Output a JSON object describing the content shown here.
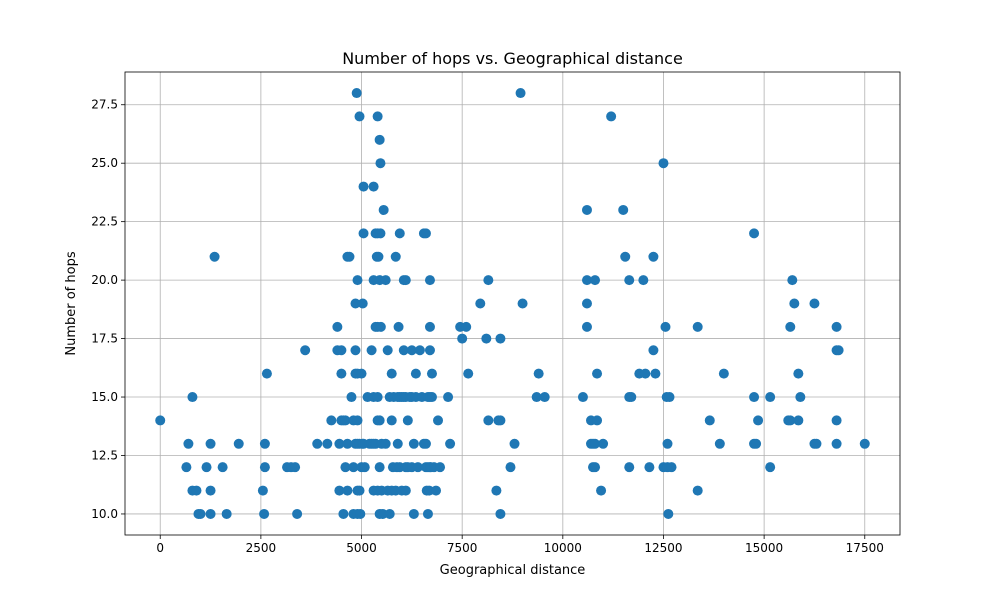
{
  "chart_data": {
    "type": "scatter",
    "title": "Number of hops vs. Geographical distance",
    "xlabel": "Geographical distance",
    "ylabel": "Number of hops",
    "xlim": [
      -875,
      18375
    ],
    "ylim": [
      9.1,
      28.9
    ],
    "xticks": [
      0,
      2500,
      5000,
      7500,
      10000,
      12500,
      15000,
      17500
    ],
    "xtick_labels": [
      "0",
      "2500",
      "5000",
      "7500",
      "10000",
      "12500",
      "15000",
      "17500"
    ],
    "yticks": [
      10.0,
      12.5,
      15.0,
      17.5,
      20.0,
      22.5,
      25.0,
      27.5
    ],
    "ytick_labels": [
      "10.0",
      "12.5",
      "15.0",
      "17.5",
      "20.0",
      "22.5",
      "25.0",
      "27.5"
    ],
    "grid": true,
    "marker_color": "#1f77b4",
    "series": [
      {
        "points": [
          [
            0,
            14
          ],
          [
            650,
            12
          ],
          [
            700,
            13
          ],
          [
            800,
            15
          ],
          [
            800,
            11
          ],
          [
            900,
            11
          ],
          [
            950,
            10
          ],
          [
            1000,
            10
          ],
          [
            1150,
            12
          ],
          [
            1250,
            13
          ],
          [
            1250,
            11
          ],
          [
            1250,
            10
          ],
          [
            1350,
            21
          ],
          [
            1550,
            12
          ],
          [
            1650,
            10
          ],
          [
            1950,
            13
          ],
          [
            2550,
            11
          ],
          [
            2580,
            10
          ],
          [
            2600,
            13
          ],
          [
            2600,
            12
          ],
          [
            2650,
            16
          ],
          [
            3150,
            12
          ],
          [
            3250,
            12
          ],
          [
            3350,
            12
          ],
          [
            3400,
            10
          ],
          [
            3600,
            17
          ],
          [
            3900,
            13
          ],
          [
            4150,
            13
          ],
          [
            4250,
            14
          ],
          [
            4400,
            18
          ],
          [
            4400,
            17
          ],
          [
            4450,
            13
          ],
          [
            4450,
            11
          ],
          [
            4500,
            17
          ],
          [
            4500,
            16
          ],
          [
            4500,
            14
          ],
          [
            4550,
            14
          ],
          [
            4550,
            10
          ],
          [
            4600,
            14
          ],
          [
            4600,
            12
          ],
          [
            4650,
            21
          ],
          [
            4650,
            13
          ],
          [
            4650,
            11
          ],
          [
            4700,
            21
          ],
          [
            4750,
            15
          ],
          [
            4800,
            14
          ],
          [
            4800,
            12
          ],
          [
            4800,
            10
          ],
          [
            4850,
            19
          ],
          [
            4850,
            17
          ],
          [
            4850,
            16
          ],
          [
            4850,
            13
          ],
          [
            4880,
            28
          ],
          [
            4900,
            20
          ],
          [
            4900,
            16
          ],
          [
            4900,
            14
          ],
          [
            4900,
            13
          ],
          [
            4900,
            11
          ],
          [
            4900,
            10
          ],
          [
            4950,
            27
          ],
          [
            4950,
            13
          ],
          [
            4950,
            11
          ],
          [
            4970,
            10
          ],
          [
            5000,
            16
          ],
          [
            5000,
            12
          ],
          [
            5020,
            13
          ],
          [
            5030,
            19
          ],
          [
            5050,
            24
          ],
          [
            5050,
            22
          ],
          [
            5050,
            13
          ],
          [
            5080,
            12
          ],
          [
            5150,
            15
          ],
          [
            5200,
            13
          ],
          [
            5250,
            17
          ],
          [
            5250,
            13
          ],
          [
            5300,
            24
          ],
          [
            5300,
            20
          ],
          [
            5300,
            15
          ],
          [
            5300,
            13
          ],
          [
            5300,
            11
          ],
          [
            5350,
            22
          ],
          [
            5350,
            18
          ],
          [
            5350,
            13
          ],
          [
            5380,
            21
          ],
          [
            5400,
            27
          ],
          [
            5400,
            22
          ],
          [
            5400,
            18
          ],
          [
            5400,
            15
          ],
          [
            5400,
            14
          ],
          [
            5400,
            11
          ],
          [
            5420,
            21
          ],
          [
            5450,
            26
          ],
          [
            5450,
            20
          ],
          [
            5450,
            14
          ],
          [
            5450,
            12
          ],
          [
            5450,
            10
          ],
          [
            5470,
            25
          ],
          [
            5470,
            22
          ],
          [
            5480,
            18
          ],
          [
            5500,
            13
          ],
          [
            5500,
            11
          ],
          [
            5530,
            10
          ],
          [
            5550,
            23
          ],
          [
            5600,
            20
          ],
          [
            5600,
            13
          ],
          [
            5650,
            17
          ],
          [
            5650,
            11
          ],
          [
            5700,
            15
          ],
          [
            5700,
            10
          ],
          [
            5750,
            16
          ],
          [
            5750,
            14
          ],
          [
            5750,
            11
          ],
          [
            5780,
            12
          ],
          [
            5800,
            15
          ],
          [
            5850,
            21
          ],
          [
            5850,
            11
          ],
          [
            5880,
            12
          ],
          [
            5900,
            15
          ],
          [
            5900,
            13
          ],
          [
            5920,
            18
          ],
          [
            5950,
            22
          ],
          [
            5950,
            15
          ],
          [
            5950,
            12
          ],
          [
            6000,
            15
          ],
          [
            6000,
            11
          ],
          [
            6050,
            20
          ],
          [
            6050,
            17
          ],
          [
            6050,
            15
          ],
          [
            6100,
            20
          ],
          [
            6100,
            15
          ],
          [
            6100,
            11
          ],
          [
            6100,
            12
          ],
          [
            6150,
            14
          ],
          [
            6150,
            12
          ],
          [
            6200,
            15
          ],
          [
            6250,
            17
          ],
          [
            6250,
            15
          ],
          [
            6250,
            12
          ],
          [
            6300,
            13
          ],
          [
            6300,
            10
          ],
          [
            6350,
            16
          ],
          [
            6350,
            15
          ],
          [
            6400,
            12
          ],
          [
            6450,
            17
          ],
          [
            6500,
            15
          ],
          [
            6550,
            22
          ],
          [
            6550,
            13
          ],
          [
            6600,
            22
          ],
          [
            6600,
            13
          ],
          [
            6600,
            12
          ],
          [
            6620,
            11
          ],
          [
            6650,
            15
          ],
          [
            6650,
            12
          ],
          [
            6650,
            10
          ],
          [
            6680,
            11
          ],
          [
            6700,
            20
          ],
          [
            6700,
            18
          ],
          [
            6700,
            17
          ],
          [
            6700,
            15
          ],
          [
            6700,
            12
          ],
          [
            6720,
            12
          ],
          [
            6750,
            16
          ],
          [
            6750,
            15
          ],
          [
            6800,
            12
          ],
          [
            6850,
            11
          ],
          [
            6900,
            14
          ],
          [
            6950,
            12
          ],
          [
            7150,
            15
          ],
          [
            7200,
            13
          ],
          [
            7450,
            18
          ],
          [
            7500,
            17.5
          ],
          [
            7600,
            18
          ],
          [
            7650,
            16
          ],
          [
            7950,
            19
          ],
          [
            8100,
            17.5
          ],
          [
            8150,
            20
          ],
          [
            8150,
            14
          ],
          [
            8350,
            11
          ],
          [
            8400,
            14
          ],
          [
            8450,
            17.5
          ],
          [
            8450,
            14
          ],
          [
            8450,
            10
          ],
          [
            8700,
            12
          ],
          [
            8800,
            13
          ],
          [
            8950,
            28
          ],
          [
            9000,
            19
          ],
          [
            9350,
            15
          ],
          [
            9400,
            16
          ],
          [
            9550,
            15
          ],
          [
            10500,
            15
          ],
          [
            10600,
            23
          ],
          [
            10600,
            20
          ],
          [
            10600,
            19
          ],
          [
            10600,
            18
          ],
          [
            10700,
            14
          ],
          [
            10700,
            13
          ],
          [
            10750,
            13
          ],
          [
            10750,
            12
          ],
          [
            10800,
            20
          ],
          [
            10800,
            13
          ],
          [
            10800,
            12
          ],
          [
            10850,
            16
          ],
          [
            10850,
            14
          ],
          [
            10950,
            11
          ],
          [
            11000,
            13
          ],
          [
            11200,
            27
          ],
          [
            11500,
            23
          ],
          [
            11550,
            21
          ],
          [
            11650,
            20
          ],
          [
            11650,
            15
          ],
          [
            11700,
            15
          ],
          [
            11650,
            12
          ],
          [
            11900,
            16
          ],
          [
            12000,
            20
          ],
          [
            12050,
            16
          ],
          [
            12150,
            12
          ],
          [
            12250,
            21
          ],
          [
            12250,
            17
          ],
          [
            12300,
            16
          ],
          [
            12500,
            25
          ],
          [
            12500,
            12
          ],
          [
            12550,
            18
          ],
          [
            12580,
            15
          ],
          [
            12600,
            13
          ],
          [
            12600,
            12
          ],
          [
            12620,
            10
          ],
          [
            12650,
            15
          ],
          [
            12700,
            12
          ],
          [
            13350,
            18
          ],
          [
            13350,
            11
          ],
          [
            13650,
            14
          ],
          [
            13900,
            13
          ],
          [
            14000,
            16
          ],
          [
            14750,
            22
          ],
          [
            14750,
            15
          ],
          [
            14750,
            13
          ],
          [
            14800,
            13
          ],
          [
            14850,
            14
          ],
          [
            15150,
            15
          ],
          [
            15150,
            12
          ],
          [
            15600,
            14
          ],
          [
            15650,
            18
          ],
          [
            15650,
            14
          ],
          [
            15700,
            20
          ],
          [
            15750,
            19
          ],
          [
            15850,
            16
          ],
          [
            15850,
            14
          ],
          [
            15900,
            15
          ],
          [
            16250,
            19
          ],
          [
            16250,
            13
          ],
          [
            16300,
            13
          ],
          [
            16800,
            18
          ],
          [
            16800,
            17
          ],
          [
            16800,
            14
          ],
          [
            16800,
            13
          ],
          [
            16850,
            17
          ],
          [
            17500,
            13
          ]
        ]
      }
    ]
  }
}
